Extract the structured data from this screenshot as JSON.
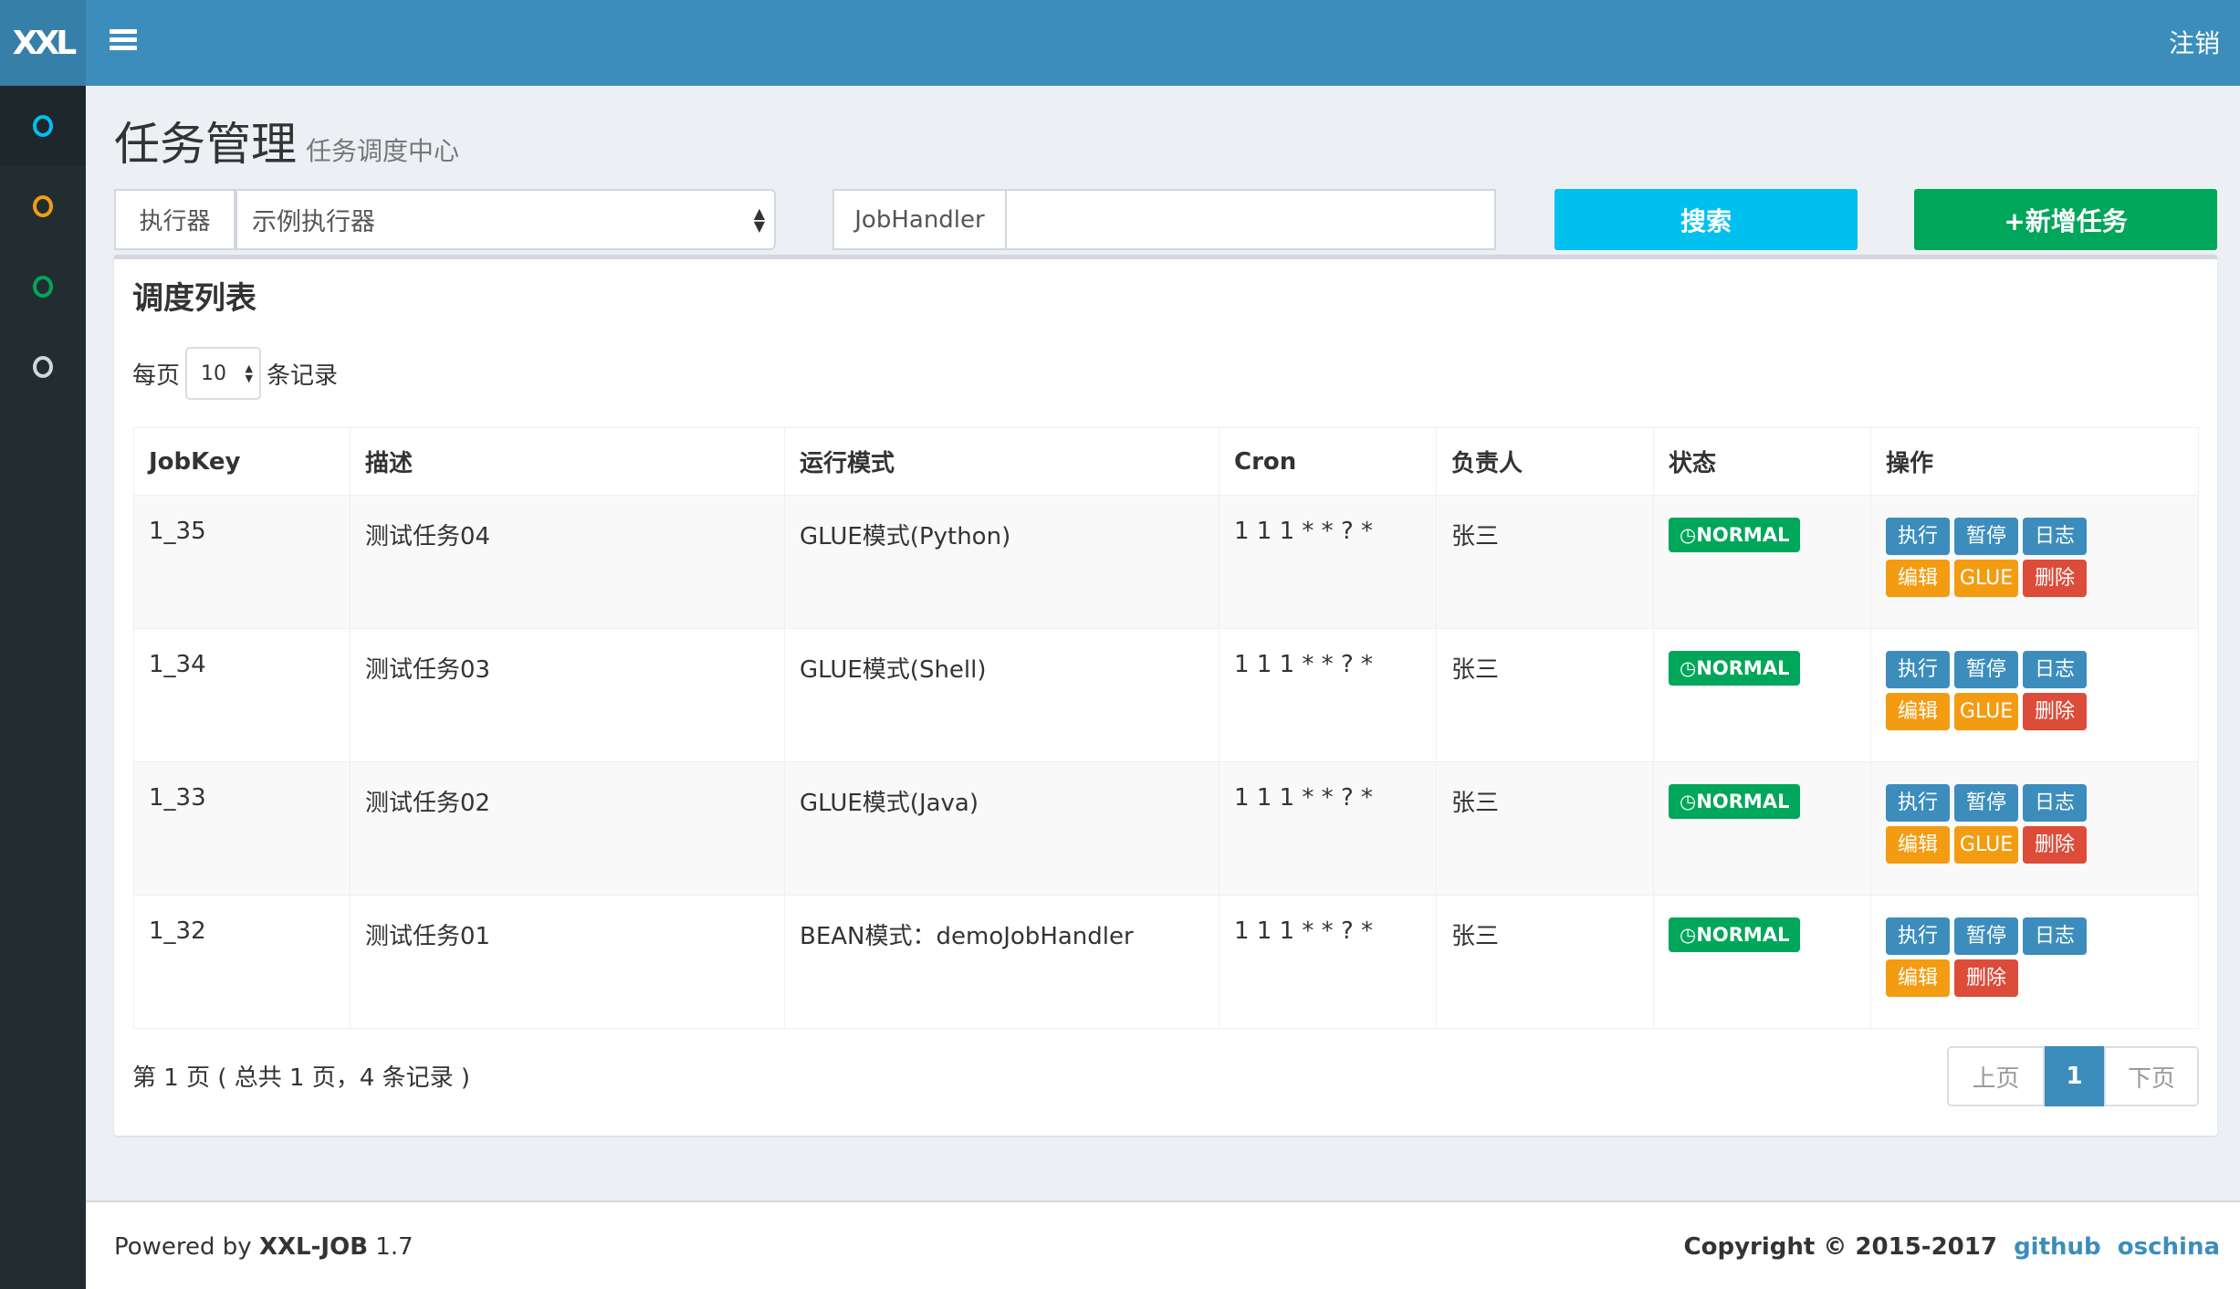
{
  "header": {
    "logo": "XXL",
    "logout": "注销"
  },
  "sidebar": {
    "items": [
      {
        "icon": "circle-icon",
        "color": "#00c0ef"
      },
      {
        "icon": "circle-icon",
        "color": "#f39c12"
      },
      {
        "icon": "circle-icon",
        "color": "#00a65a"
      },
      {
        "icon": "circle-icon",
        "color": "#d2d6de"
      }
    ]
  },
  "page": {
    "title": "任务管理",
    "subtitle": "任务调度中心"
  },
  "filters": {
    "executor_label": "执行器",
    "executor_value": "示例执行器",
    "jobhandler_label": "JobHandler",
    "jobhandler_value": "",
    "search": "搜索",
    "add": "+新增任务"
  },
  "box": {
    "title": "调度列表",
    "per_page_prefix": "每页",
    "per_page_value": "10",
    "per_page_suffix": "条记录"
  },
  "table": {
    "headers": [
      "JobKey",
      "描述",
      "运行模式",
      "Cron",
      "负责人",
      "状态",
      "操作"
    ],
    "rows": [
      {
        "key": "1_35",
        "desc": "测试任务04",
        "mode": "GLUE模式(Python)",
        "cron": "1 1 1 * * ? *",
        "owner": "张三",
        "status": "NORMAL",
        "glue": true
      },
      {
        "key": "1_34",
        "desc": "测试任务03",
        "mode": "GLUE模式(Shell)",
        "cron": "1 1 1 * * ? *",
        "owner": "张三",
        "status": "NORMAL",
        "glue": true
      },
      {
        "key": "1_33",
        "desc": "测试任务02",
        "mode": "GLUE模式(Java)",
        "cron": "1 1 1 * * ? *",
        "owner": "张三",
        "status": "NORMAL",
        "glue": true
      },
      {
        "key": "1_32",
        "desc": "测试任务01",
        "mode": "BEAN模式：demoJobHandler",
        "cron": "1 1 1 * * ? *",
        "owner": "张三",
        "status": "NORMAL",
        "glue": false
      }
    ],
    "actions": {
      "run": "执行",
      "pause": "暂停",
      "log": "日志",
      "edit": "编辑",
      "glue": "GLUE",
      "delete": "删除"
    }
  },
  "pagination": {
    "info": "第 1 页 ( 总共 1 页，4 条记录 )",
    "prev": "上页",
    "current": "1",
    "next": "下页"
  },
  "footer": {
    "powered_prefix": "Powered by ",
    "product": "XXL-JOB",
    "version": " 1.7",
    "copyright": "Copyright © 2015-2017",
    "github": "github",
    "oschina": "oschina"
  },
  "colors": {
    "header": "#3c8dbc",
    "sidebar": "#222d32",
    "success": "#00a65a",
    "info": "#00c0ef",
    "warning": "#f39c12",
    "danger": "#dd4b39"
  }
}
